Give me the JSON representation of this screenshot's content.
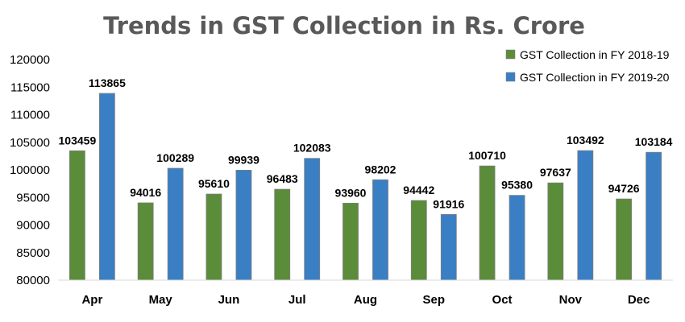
{
  "chart_data": {
    "type": "bar",
    "title": "Trends in GST Collection in Rs. Crore",
    "xlabel": "",
    "ylabel": "",
    "ylim": [
      80000,
      120000
    ],
    "yticks": [
      "80000",
      "85000",
      "90000",
      "95000",
      "100000",
      "105000",
      "110000",
      "115000",
      "120000"
    ],
    "grid": false,
    "legend_position": "top-right",
    "categories": [
      "Apr",
      "May",
      "Jun",
      "Jul",
      "Aug",
      "Sep",
      "Oct",
      "Nov",
      "Dec"
    ],
    "series": [
      {
        "name": "GST Collection in FY 2018-19",
        "color": "#5b8c3a",
        "values": [
          103459,
          94016,
          95610,
          96483,
          93960,
          94442,
          100710,
          97637,
          94726
        ]
      },
      {
        "name": "GST Collection in FY 2019-20",
        "color": "#3a7fc4",
        "values": [
          113865,
          100289,
          99939,
          102083,
          98202,
          91916,
          95380,
          103492,
          103184
        ]
      }
    ]
  }
}
